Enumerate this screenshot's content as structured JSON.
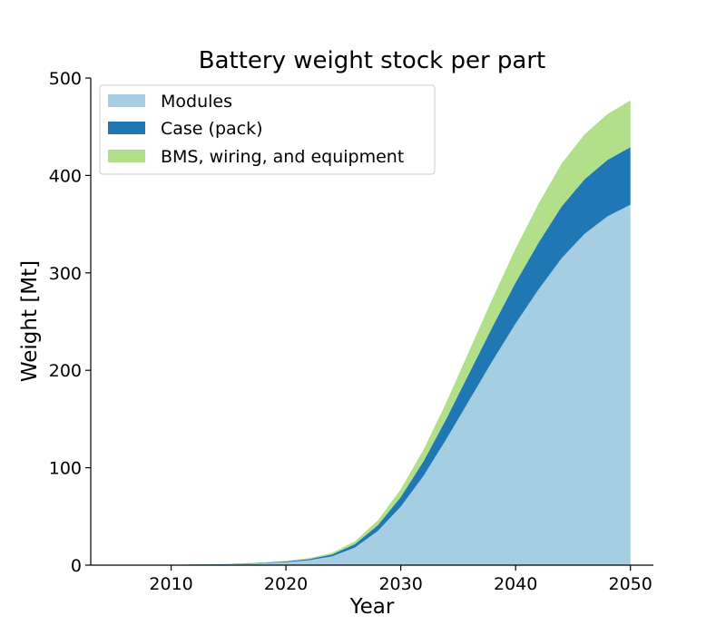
{
  "chart_data": {
    "type": "area",
    "stacked": true,
    "title": "Battery weight stock per part",
    "xlabel": "Year",
    "ylabel": "Weight [Mt]",
    "xlim": [
      2003,
      2052
    ],
    "ylim": [
      0,
      500
    ],
    "xticks": [
      2010,
      2020,
      2030,
      2040,
      2050
    ],
    "yticks": [
      0,
      100,
      200,
      300,
      400,
      500
    ],
    "grid": false,
    "legend_position": "top-left",
    "x": [
      2005,
      2010,
      2015,
      2018,
      2020,
      2022,
      2024,
      2026,
      2028,
      2030,
      2032,
      2034,
      2036,
      2038,
      2040,
      2042,
      2044,
      2046,
      2048,
      2050
    ],
    "series": [
      {
        "name": "Modules",
        "color": "#a6cee3",
        "values": [
          0,
          0.2,
          0.8,
          2,
          3,
          5,
          9,
          18,
          35,
          60,
          92,
          130,
          170,
          210,
          248,
          283,
          315,
          340,
          358,
          370
        ]
      },
      {
        "name": "Case (pack)",
        "color": "#1f78b4",
        "values": [
          0,
          0.1,
          0.3,
          0.5,
          0.8,
          1.2,
          2,
          3.5,
          6,
          10,
          15,
          21,
          28,
          35,
          42,
          48,
          53,
          56,
          58,
          59
        ]
      },
      {
        "name": "BMS, wiring, and equipment",
        "color": "#b2df8a",
        "values": [
          0,
          0.1,
          0.2,
          0.4,
          0.6,
          1,
          1.5,
          3,
          5,
          8,
          12,
          17,
          23,
          29,
          35,
          40,
          44,
          46,
          47,
          48
        ]
      }
    ]
  }
}
